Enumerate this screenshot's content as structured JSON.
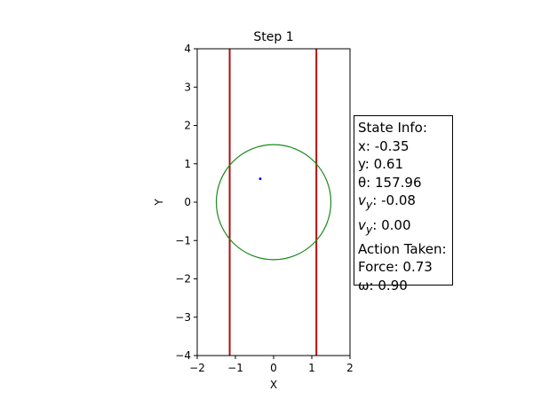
{
  "plot": {
    "title": "Step 1",
    "xlabel": "X",
    "ylabel": "Y",
    "xlim": [
      -2,
      2
    ],
    "ylim": [
      -4,
      4
    ],
    "x_ticks": [
      {
        "value": -2,
        "label": "−2"
      },
      {
        "value": -1,
        "label": "−1"
      },
      {
        "value": 0,
        "label": "0"
      },
      {
        "value": 1,
        "label": "1"
      },
      {
        "value": 2,
        "label": "2"
      }
    ],
    "y_ticks": [
      {
        "value": -4,
        "label": "−4"
      },
      {
        "value": -3,
        "label": "−3"
      },
      {
        "value": -2,
        "label": "−2"
      },
      {
        "value": -1,
        "label": "−1"
      },
      {
        "value": 0,
        "label": "0"
      },
      {
        "value": 1,
        "label": "1"
      },
      {
        "value": 2,
        "label": "2"
      },
      {
        "value": 3,
        "label": "3"
      },
      {
        "value": 4,
        "label": "4"
      }
    ],
    "walls": [
      {
        "x": -1.15,
        "color": "#b01010"
      },
      {
        "x": 1.12,
        "color": "#b01010"
      }
    ],
    "circle": {
      "cx": 0,
      "cy": 0,
      "r": 1.5,
      "color": "#1a8a1a"
    },
    "agent": {
      "x": -0.35,
      "y": 0.61,
      "color": "#1010ff"
    }
  },
  "info": {
    "header": "State Info:",
    "x_line": "x: -0.35",
    "y_line": "y: 0.61",
    "theta_line": "θ: 157.96",
    "v1_prefix": "v",
    "v1_sub": "y",
    "v1_value": ": -0.08",
    "v2_prefix": "v",
    "v2_sub": "y",
    "v2_value": ": 0.00",
    "action_header": "Action Taken:",
    "force_line": "Force: 0.73",
    "omega_line": "ω: 0.90"
  }
}
